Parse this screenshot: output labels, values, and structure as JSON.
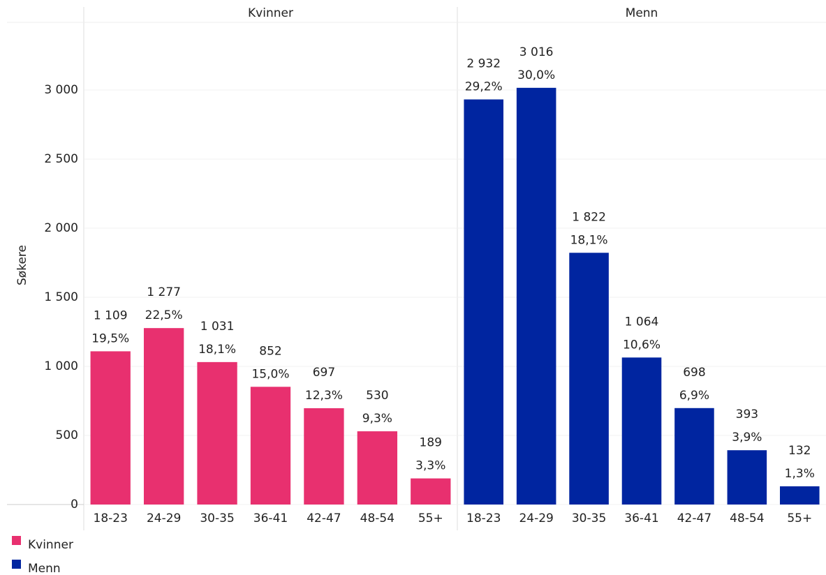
{
  "chart_data": {
    "type": "bar",
    "y_label": "Søkere",
    "categories": [
      "18-23",
      "24-29",
      "30-35",
      "36-41",
      "42-47",
      "48-54",
      "55+"
    ],
    "series": [
      {
        "name": "Kvinner",
        "color": "#e8306f",
        "values": [
          1109,
          1277,
          1031,
          852,
          697,
          530,
          189
        ],
        "value_labels": [
          "1 109",
          "1 277",
          "1 031",
          "852",
          "697",
          "530",
          "189"
        ],
        "shares": [
          19.5,
          22.5,
          18.1,
          15.0,
          12.3,
          9.3,
          3.3
        ],
        "share_labels": [
          "19,5%",
          "22,5%",
          "18,1%",
          "15,0%",
          "12,3%",
          "9,3%",
          "3,3%"
        ]
      },
      {
        "name": "Menn",
        "color": "#0025a0",
        "values": [
          2932,
          3016,
          1822,
          1064,
          698,
          393,
          132
        ],
        "value_labels": [
          "2 932",
          "3 016",
          "1 822",
          "1 064",
          "698",
          "393",
          "132"
        ],
        "shares": [
          29.2,
          30.0,
          18.1,
          10.6,
          6.9,
          3.9,
          1.3
        ],
        "share_labels": [
          "29,2%",
          "30,0%",
          "18,1%",
          "10,6%",
          "6,9%",
          "3,9%",
          "1,3%"
        ]
      }
    ],
    "ylim": [
      0,
      3490
    ],
    "yticks": [
      0,
      500,
      {
        "value": 1000,
        "label": "1 000"
      },
      {
        "value": 1500,
        "label": "1 500"
      },
      {
        "value": 2000,
        "label": "2 000"
      },
      {
        "value": 2500,
        "label": "2 500"
      },
      {
        "value": 3000,
        "label": "3 000"
      }
    ],
    "grid": true
  }
}
